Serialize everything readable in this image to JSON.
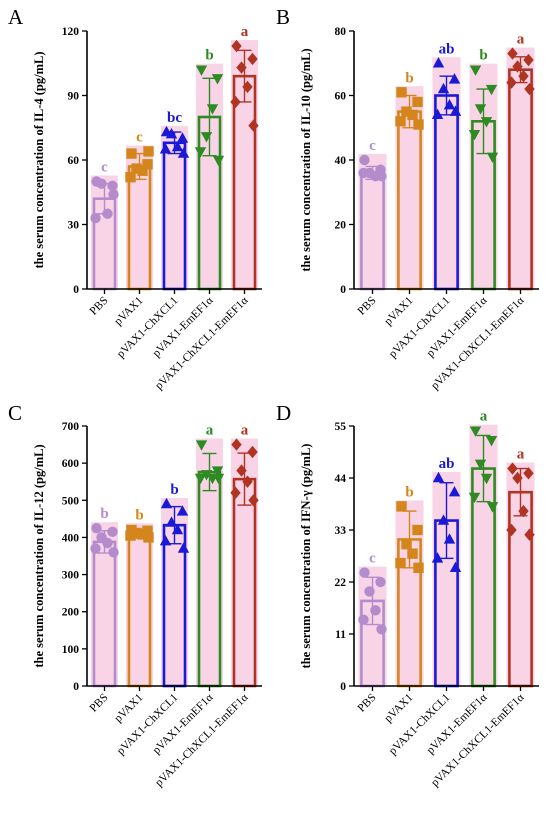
{
  "chart_data": [
    {
      "panel": "A",
      "type": "bar",
      "ylabel": "the serum concentration of IL-4 (pg/mL)",
      "categories": [
        "PBS",
        "pVAX1",
        "pVAX1-ChXCL1",
        "pVAX1-EmEF1α",
        "pVAX1-ChXCL1-EmEF1α"
      ],
      "values": [
        42,
        57,
        68,
        80,
        99
      ],
      "sd": [
        7,
        6,
        5,
        18,
        12
      ],
      "points": [
        [
          50,
          48,
          49,
          35,
          33,
          44
        ],
        [
          63,
          58,
          56,
          55,
          52,
          64
        ],
        [
          73,
          70,
          72,
          66,
          65,
          63
        ],
        [
          102,
          98,
          71,
          84,
          64,
          60
        ],
        [
          113,
          107,
          103,
          94,
          87,
          76
        ]
      ],
      "letters": [
        "c",
        "c",
        "bc",
        "b",
        "a"
      ],
      "ylim": [
        0,
        120
      ],
      "yticks": [
        "0",
        "30",
        "60",
        "90",
        "120"
      ]
    },
    {
      "panel": "B",
      "type": "bar",
      "ylabel": "the serum concentration of IL-10 (pg/mL)",
      "categories": [
        "PBS",
        "pVAX1",
        "pVAX1-ChXCL1",
        "pVAX1-EmEF1α",
        "pVAX1-ChXCL1-EmEF1α"
      ],
      "values": [
        36,
        55,
        60,
        52,
        68
      ],
      "sd": [
        2,
        5,
        6,
        10,
        4
      ],
      "points": [
        [
          40,
          37,
          36,
          35,
          36,
          35
        ],
        [
          61,
          58,
          55,
          54,
          52,
          51
        ],
        [
          70,
          65,
          62,
          57,
          54,
          55
        ],
        [
          68,
          62,
          56,
          52,
          48,
          41
        ],
        [
          73,
          71,
          69,
          66,
          64,
          62
        ]
      ],
      "letters": [
        "c",
        "b",
        "ab",
        "b",
        "a"
      ],
      "ylim": [
        0,
        80
      ],
      "yticks": [
        "0",
        "20",
        "40",
        "60",
        "80"
      ]
    },
    {
      "panel": "C",
      "type": "bar",
      "ylabel": "the serum concentration of IL-12 (pg/mL)",
      "categories": [
        "PBS",
        "pVAX1",
        "pVAX1-ChXCL1",
        "pVAX1-EmEF1α",
        "pVAX1-ChXCL1-EmEF1α"
      ],
      "values": [
        388,
        410,
        433,
        576,
        557
      ],
      "sd": [
        30,
        12,
        50,
        50,
        70
      ],
      "points": [
        [
          425,
          415,
          400,
          385,
          370,
          360
        ],
        [
          420,
          418,
          412,
          408,
          405,
          400
        ],
        [
          490,
          470,
          440,
          420,
          390,
          370
        ],
        [
          650,
          580,
          570,
          560,
          560,
          560
        ],
        [
          650,
          630,
          580,
          550,
          520,
          500
        ]
      ],
      "letters": [
        "b",
        "b",
        "b",
        "a",
        "a"
      ],
      "ylim": [
        0,
        700
      ],
      "yticks": [
        "0",
        "100",
        "200",
        "300",
        "400",
        "500",
        "600",
        "700"
      ]
    },
    {
      "panel": "D",
      "type": "bar",
      "ylabel": "the serum concentration of IFN-γ (pg/mL)",
      "categories": [
        "PBS",
        "pVAX1",
        "pVAX1-ChXCL1",
        "pVAX1-EmEF1α",
        "pVAX1-ChXCL1-EmEF1α"
      ],
      "values": [
        18,
        31,
        35,
        46,
        41
      ],
      "sd": [
        5,
        6,
        8,
        7,
        5
      ],
      "points": [
        [
          24,
          22,
          20,
          16,
          14,
          12
        ],
        [
          38,
          33,
          30,
          28,
          26,
          25
        ],
        [
          44,
          41,
          35,
          31,
          27,
          25
        ],
        [
          54,
          52,
          47,
          44,
          40,
          38
        ],
        [
          46,
          45,
          44,
          37,
          33,
          32
        ]
      ],
      "letters": [
        "c",
        "b",
        "ab",
        "a",
        "a"
      ],
      "ylim": [
        0,
        55
      ],
      "yticks": [
        "0",
        "11",
        "22",
        "33",
        "44",
        "55"
      ]
    }
  ],
  "colors": [
    "#b48ccc",
    "#d4861c",
    "#1a1ad6",
    "#2e8a22",
    "#b03422"
  ],
  "highlight": "#f7c6df",
  "markers": [
    "circle",
    "square",
    "triangle-up",
    "triangle-down",
    "diamond"
  ]
}
